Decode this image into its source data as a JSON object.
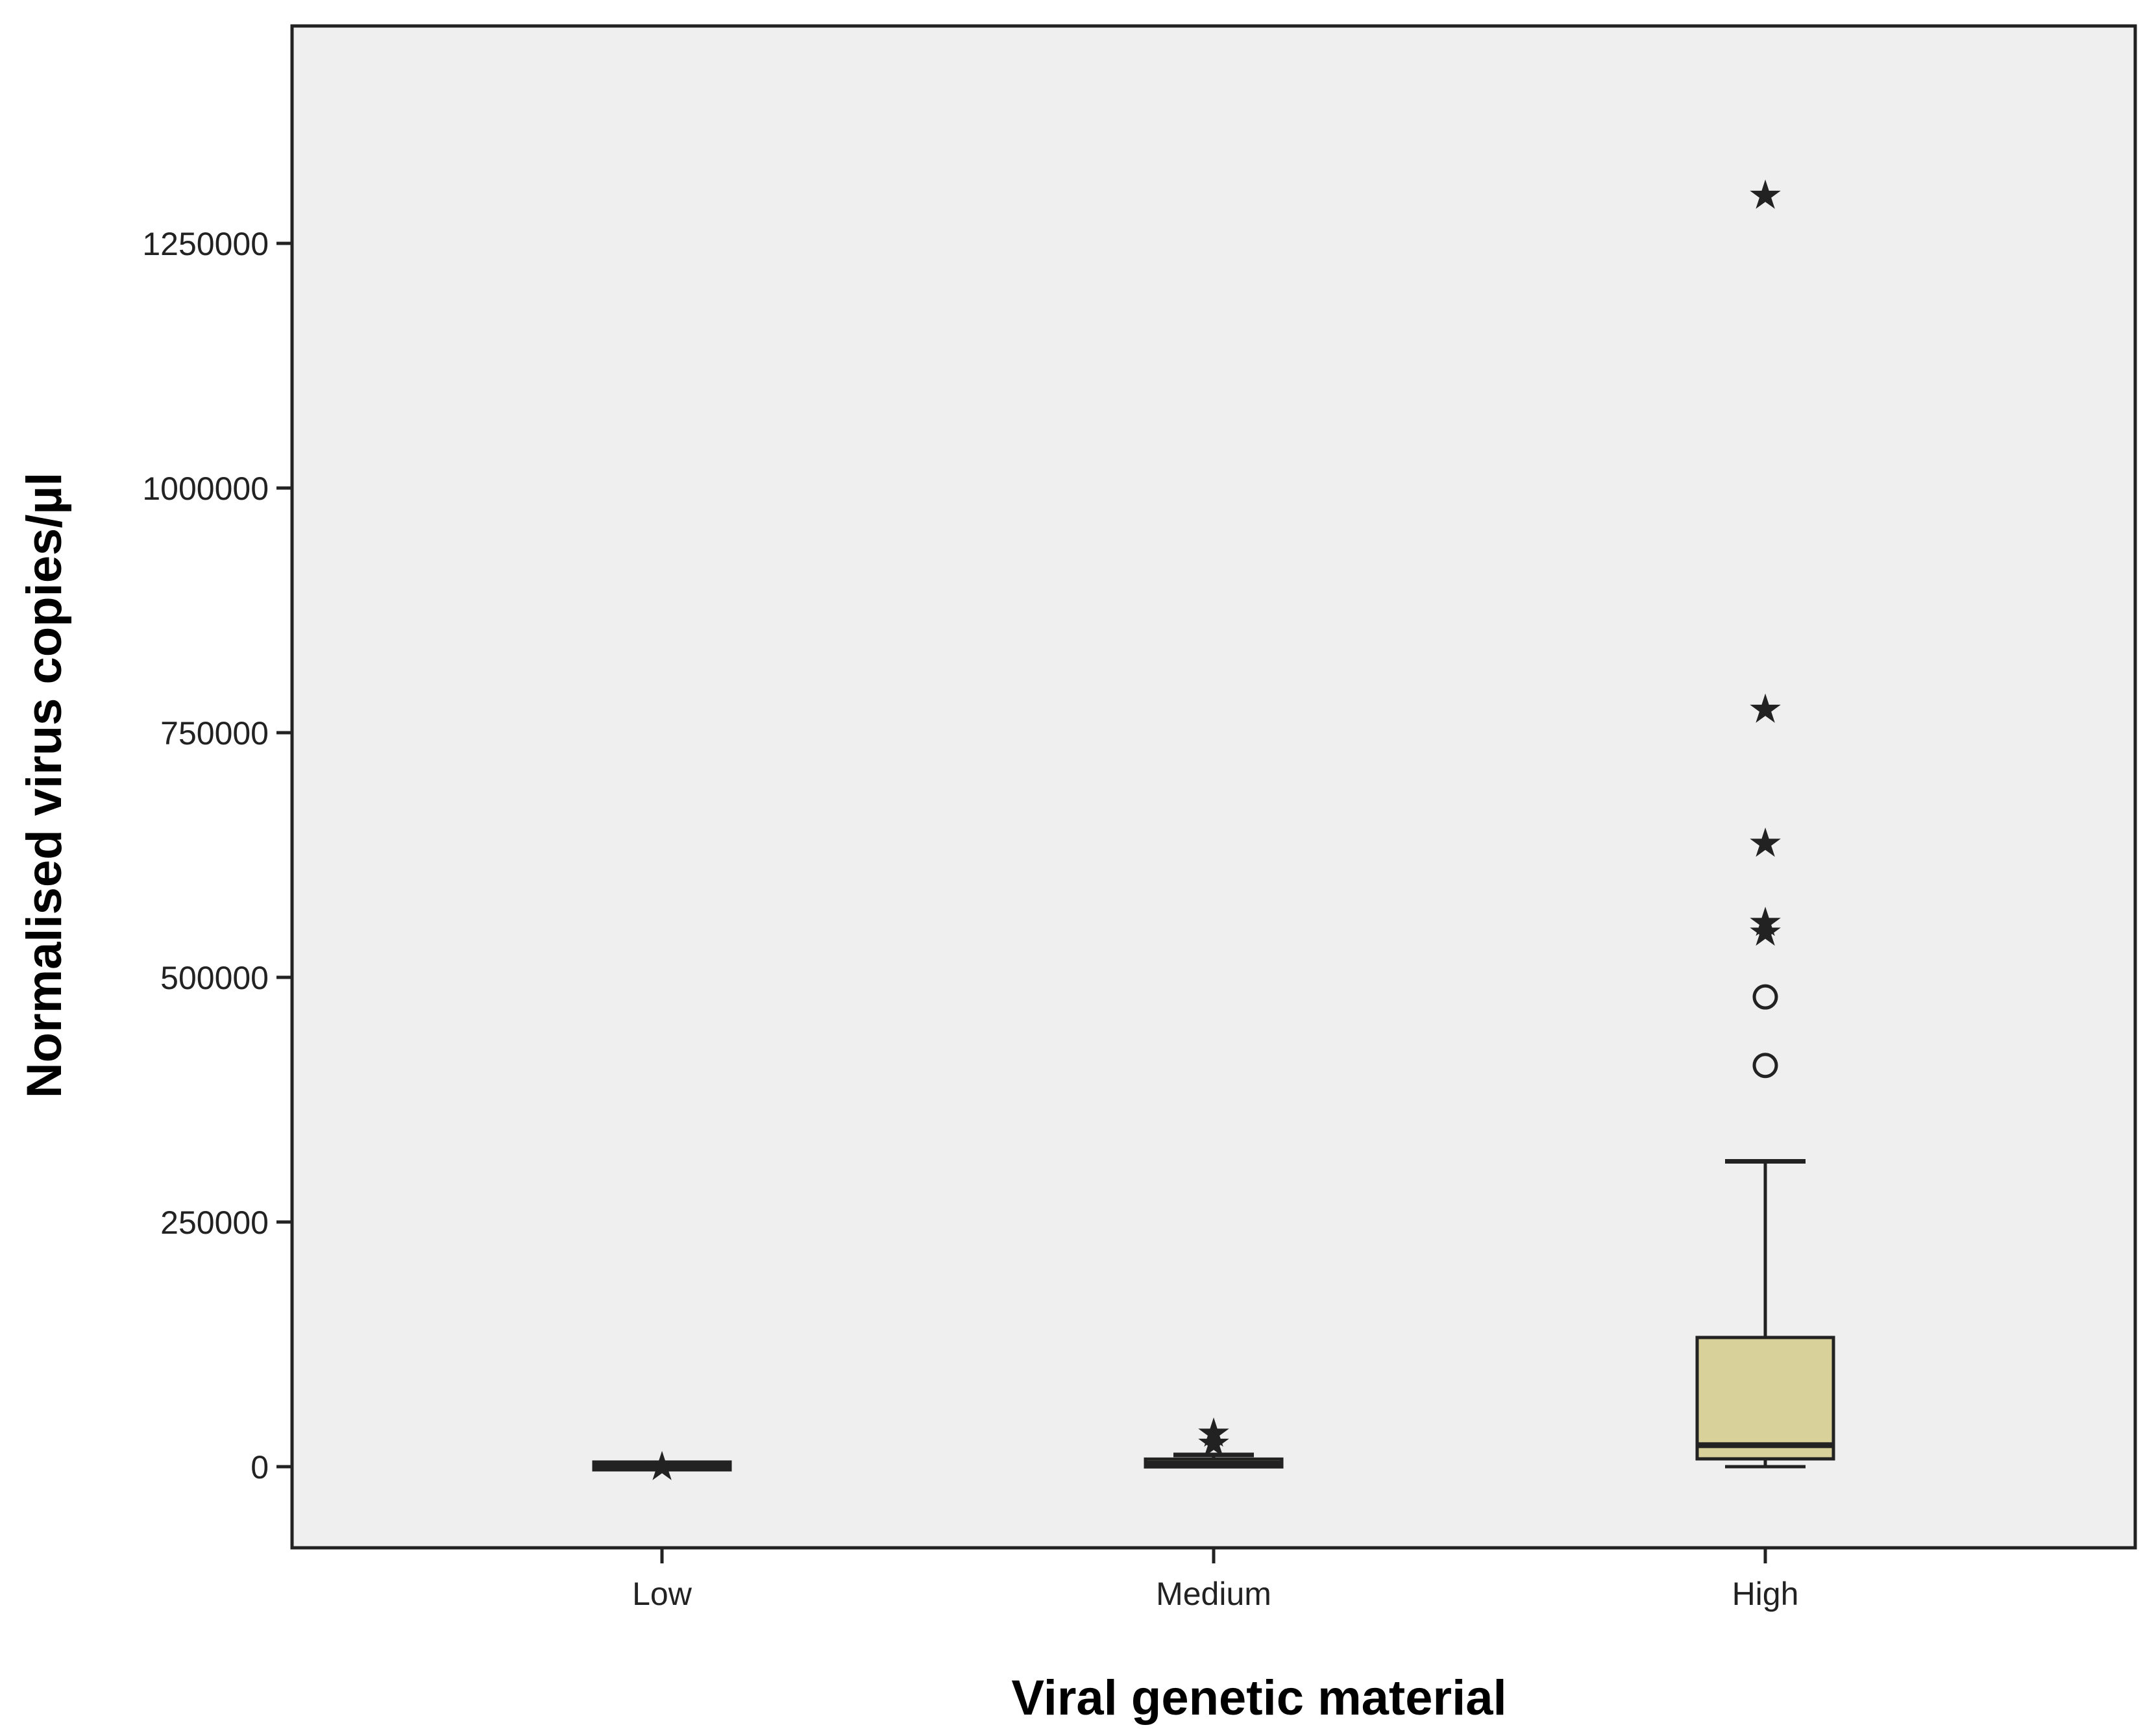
{
  "chart_data": {
    "type": "box",
    "title": "",
    "xlabel": "Viral genetic material",
    "ylabel": "Normalised virus copies/µl",
    "ylim": [
      -75000,
      1480000
    ],
    "yticks": [
      0,
      250000,
      500000,
      750000,
      1000000,
      1250000
    ],
    "ytick_labels": [
      "0",
      "250000",
      "500000",
      "750000",
      "1000000",
      "1250000"
    ],
    "categories": [
      "Low",
      "Medium",
      "High"
    ],
    "grid": false,
    "colors": {
      "plot_background": "#efefef",
      "box_fill": "#d8d199",
      "ink": "#222222"
    },
    "boxes": [
      {
        "category": "Low",
        "whisker_low": 0,
        "q1": 0,
        "median": 500,
        "q3": 1500,
        "whisker_high": 2500,
        "outliers_circle": [],
        "outliers_star": [
          1000
        ]
      },
      {
        "category": "Medium",
        "whisker_low": 0,
        "q1": 1500,
        "median": 3000,
        "q3": 6000,
        "whisker_high": 12000,
        "outliers_circle": [],
        "outliers_star": [
          35000,
          25000
        ]
      },
      {
        "category": "High",
        "whisker_low": 0,
        "q1": 8000,
        "median": 22000,
        "q3": 132000,
        "whisker_high": 312000,
        "outliers_circle": [
          480000,
          410000
        ],
        "outliers_star": [
          1300000,
          775000,
          638000,
          557000,
          547000
        ]
      }
    ]
  }
}
